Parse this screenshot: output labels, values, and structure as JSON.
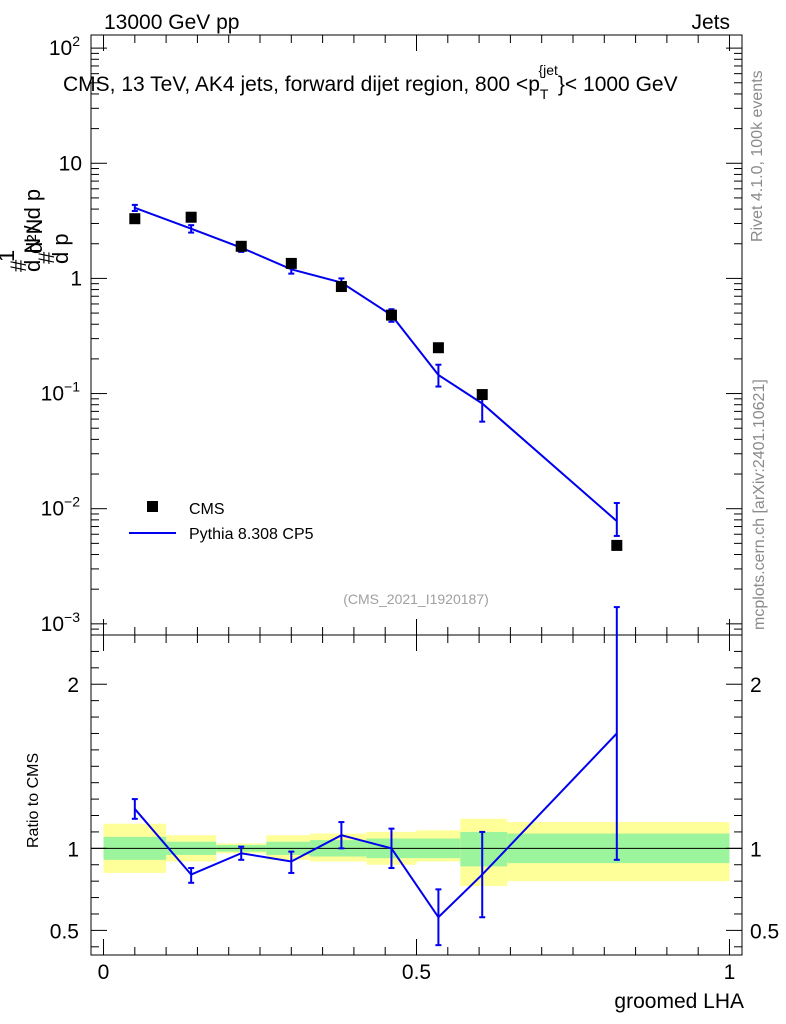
{
  "header": {
    "left": "13000 GeV pp",
    "right": "Jets"
  },
  "side_text": {
    "upper": "Rivet 4.1.0,  100k events",
    "lower": "mcplots.cern.ch [arXiv:2401.10621]"
  },
  "analysis_id": "(CMS_2021_I1920187)",
  "colors": {
    "mc": "#0000ee",
    "data": "#000000",
    "band_inner": "#9cf59c",
    "band_outer": "#ffff99"
  },
  "chart_data": [
    {
      "type": "scatter",
      "panel": "main",
      "title": "CMS, 13 TeV, AK4 jets, forward dijet region, 800 < p_T^{jet} < 1000 GeV",
      "title_parts": {
        "main": "CMS, 13 TeV, AK4 jets, forward dijet region, 800 <p",
        "sub": "T",
        "sup": "{jet",
        "tail": "}< 1000 GeV"
      },
      "ylabel": "1/dN/dp_T  d²N/dp_T dλ",
      "yscale": "log",
      "ylim": [
        0.0008,
        130
      ],
      "xlim": [
        -0.02,
        1.02
      ],
      "y_ticks": [
        {
          "value": 0.001,
          "base": "10",
          "exp": "−3"
        },
        {
          "value": 0.01,
          "base": "10",
          "exp": "−2"
        },
        {
          "value": 0.1,
          "base": "10",
          "exp": "−1"
        },
        {
          "value": 1,
          "base": "1",
          "exp": ""
        },
        {
          "value": 10,
          "base": "10",
          "exp": ""
        },
        {
          "value": 100,
          "base": "10",
          "exp": "2"
        }
      ],
      "legend": [
        "CMS",
        "Pythia 8.308 CP5"
      ],
      "legend_position": "lower-left",
      "series": [
        {
          "name": "CMS",
          "style": "markers",
          "x": [
            0.05,
            0.14,
            0.22,
            0.3,
            0.38,
            0.46,
            0.535,
            0.605,
            0.82
          ],
          "y": [
            3.3,
            3.4,
            1.9,
            1.35,
            0.85,
            0.48,
            0.25,
            0.098,
            0.0048
          ]
        },
        {
          "name": "Pythia 8.308 CP5",
          "style": "line",
          "x": [
            0.05,
            0.14,
            0.22,
            0.3,
            0.38,
            0.46,
            0.535,
            0.605,
            0.82
          ],
          "y": [
            4.1,
            2.7,
            1.85,
            1.2,
            0.92,
            0.48,
            0.145,
            0.082,
            0.0078
          ],
          "err_lo": [
            3.85,
            2.5,
            1.7,
            1.1,
            0.8,
            0.42,
            0.115,
            0.057,
            0.0058
          ],
          "err_hi": [
            4.35,
            2.9,
            2.0,
            1.3,
            1.0,
            0.54,
            0.178,
            0.105,
            0.0112
          ]
        }
      ]
    },
    {
      "type": "line",
      "panel": "ratio",
      "ylabel": "Ratio to CMS",
      "xlabel": "groomed LHA",
      "xlim": [
        -0.02,
        1.02
      ],
      "ylim": [
        0.35,
        2.3
      ],
      "x_ticks": [
        {
          "value": 0,
          "label": "0"
        },
        {
          "value": 0.5,
          "label": "0.5"
        },
        {
          "value": 1,
          "label": "1"
        }
      ],
      "y_ticks": [
        {
          "value": 0.5,
          "label": "0.5"
        },
        {
          "value": 1,
          "label": "1"
        },
        {
          "value": 2,
          "label": "2"
        }
      ],
      "bands": [
        {
          "x0": 0.0,
          "x1": 0.1,
          "inner": [
            0.93,
            1.07
          ],
          "outer": [
            0.85,
            1.15
          ]
        },
        {
          "x0": 0.1,
          "x1": 0.18,
          "inner": [
            0.96,
            1.04
          ],
          "outer": [
            0.92,
            1.08
          ]
        },
        {
          "x0": 0.18,
          "x1": 0.26,
          "inner": [
            0.98,
            1.02
          ],
          "outer": [
            0.97,
            1.03
          ]
        },
        {
          "x0": 0.26,
          "x1": 0.33,
          "inner": [
            0.96,
            1.04
          ],
          "outer": [
            0.93,
            1.08
          ]
        },
        {
          "x0": 0.33,
          "x1": 0.42,
          "inner": [
            0.95,
            1.05
          ],
          "outer": [
            0.92,
            1.09
          ]
        },
        {
          "x0": 0.42,
          "x1": 0.5,
          "inner": [
            0.94,
            1.06
          ],
          "outer": [
            0.9,
            1.1
          ]
        },
        {
          "x0": 0.5,
          "x1": 0.57,
          "inner": [
            0.94,
            1.06
          ],
          "outer": [
            0.92,
            1.11
          ]
        },
        {
          "x0": 0.57,
          "x1": 0.645,
          "inner": [
            0.89,
            1.1
          ],
          "outer": [
            0.77,
            1.18
          ]
        },
        {
          "x0": 0.645,
          "x1": 1.0,
          "inner": [
            0.91,
            1.09
          ],
          "outer": [
            0.8,
            1.16
          ]
        }
      ],
      "series": [
        {
          "name": "Pythia 8.308 CP5 / CMS",
          "x": [
            0.05,
            0.14,
            0.22,
            0.3,
            0.38,
            0.46,
            0.535,
            0.605,
            0.82
          ],
          "y": [
            1.24,
            0.84,
            0.97,
            0.92,
            1.08,
            1.0,
            0.58,
            0.84,
            1.7
          ],
          "err_lo": [
            1.18,
            0.79,
            0.93,
            0.85,
            1.0,
            0.88,
            0.41,
            0.58,
            0.93
          ],
          "err_hi": [
            1.3,
            0.88,
            1.01,
            0.98,
            1.16,
            1.12,
            0.75,
            1.1,
            2.47
          ]
        }
      ]
    }
  ]
}
